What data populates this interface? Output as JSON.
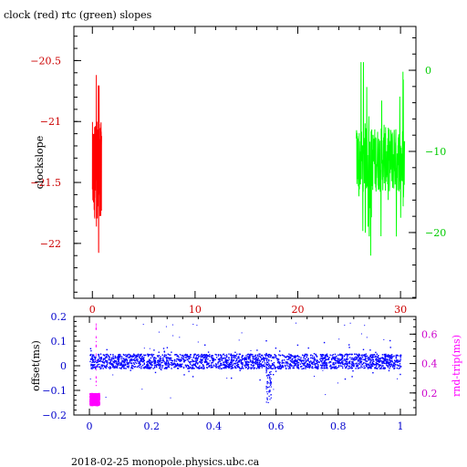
{
  "title": "clock (red) rtc (green) slopes",
  "footer": "2018-02-25  monopole.physics.ubc.ca",
  "colors": {
    "frame": "#000000",
    "clock": "#ff0000",
    "rtc": "#00ff00",
    "offset": "#0000ff",
    "rndtrip": "#ff00ff",
    "tick_left_top": "#cc0000",
    "tick_right_top": "#00cc00",
    "tick_bottom": "#0000cc",
    "tick_right_bottom": "#cc00cc"
  },
  "chart_data": [
    {
      "type": "line",
      "title": "clock (red) rtc (green) slopes",
      "ylabel": "clockslope",
      "xlim": [
        -1.8,
        31.5
      ],
      "xticks": [
        0,
        10,
        20,
        30
      ],
      "ylim_left": [
        -22.45,
        -20.22
      ],
      "yticks_left": [
        -22,
        -21.5,
        -21,
        -20.5
      ],
      "ylim_right": [
        -28.1,
        5.4
      ],
      "yticks_right": [
        -20,
        -10,
        0
      ],
      "grid": false,
      "series": [
        {
          "name": "clock",
          "axis": "left",
          "x_range": [
            0.0,
            0.9
          ],
          "center": -21.4,
          "spread": [
            -22.35,
            -20.25
          ]
        },
        {
          "name": "rtc",
          "axis": "right",
          "x_range": [
            25.7,
            30.4
          ],
          "center": -11.0,
          "spread": [
            -26.0,
            1.0
          ]
        }
      ]
    },
    {
      "type": "scatter",
      "xlabel": "",
      "ylabel": "offset(ms)",
      "ylabel_right": "rnd-trip(ms)",
      "xlim": [
        -0.05,
        1.05
      ],
      "xticks": [
        0,
        0.2,
        0.4,
        0.6,
        0.8,
        1
      ],
      "ylim_left": [
        -0.2,
        0.2
      ],
      "yticks_left": [
        -0.2,
        -0.1,
        0,
        0.1,
        0.2
      ],
      "ylim_right": [
        0.05,
        0.72
      ],
      "yticks_right": [
        0.2,
        0.4,
        0.6
      ],
      "grid": false,
      "series": [
        {
          "name": "offset",
          "axis": "left",
          "x_range": [
            0.0,
            1.0
          ],
          "band": [
            -0.01,
            0.05
          ],
          "outliers": [
            -0.15,
            0.18
          ],
          "dip_at": 0.575,
          "dip_min": -0.15
        },
        {
          "name": "rnd-trip",
          "axis": "right",
          "x_range": [
            0.0,
            0.03
          ],
          "band": [
            0.12,
            0.2
          ],
          "spike_max": 0.7
        }
      ]
    }
  ]
}
